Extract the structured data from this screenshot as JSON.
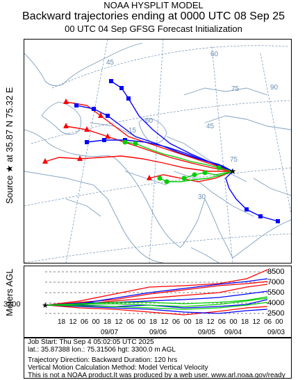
{
  "header": {
    "line1": "NOAA HYSPLIT MODEL",
    "line2": "Backward trajectories ending at 0000 UTC 08 Sep 25",
    "line3": "00 UTC 04 Sep    GFSG  Forecast Initialization"
  },
  "side_labels": {
    "source": "Source ★ at   35.87 N   75.32 E",
    "meters": "Meters AGL"
  },
  "map": {
    "graticule_labels": [
      "60",
      "45",
      "75",
      "90",
      "45",
      "30",
      "15",
      "75",
      "60"
    ],
    "colors": {
      "red": "#ff0000",
      "blue": "#0000ff",
      "green": "#00dd00",
      "land": "#7f9fbf",
      "grid": "#6a8db5"
    }
  },
  "timeseries": {
    "start_height": "3300",
    "y_ticks": [
      "8500",
      "7000",
      "5500",
      "4000",
      "2500"
    ],
    "hour_ticks": [
      "18",
      "12",
      "06",
      "00",
      "18",
      "12",
      "06",
      "00",
      "18",
      "12",
      "06",
      "00",
      "18",
      "12",
      "06",
      "00",
      "18",
      "12",
      "06",
      "00"
    ],
    "date_labels": [
      "09/07",
      "09/06",
      "09/05",
      "09/04",
      "09/03"
    ]
  },
  "info": {
    "l1": "Job Start: Thu Sep  4 05:02:05 UTC 2025",
    "l2": "lat.: 35.87388   lon.: 75.31506    hgt: 3300.0 m AGL",
    "l3": "Trajectory Direction: Backward       Duration: 120 hrs",
    "l4": "Vertical Motion Calculation Method: Model Vertical Velocity",
    "l5": "This is not a NOAA product.It was produced by a web user. www.arl.noaa.gov/ready"
  }
}
